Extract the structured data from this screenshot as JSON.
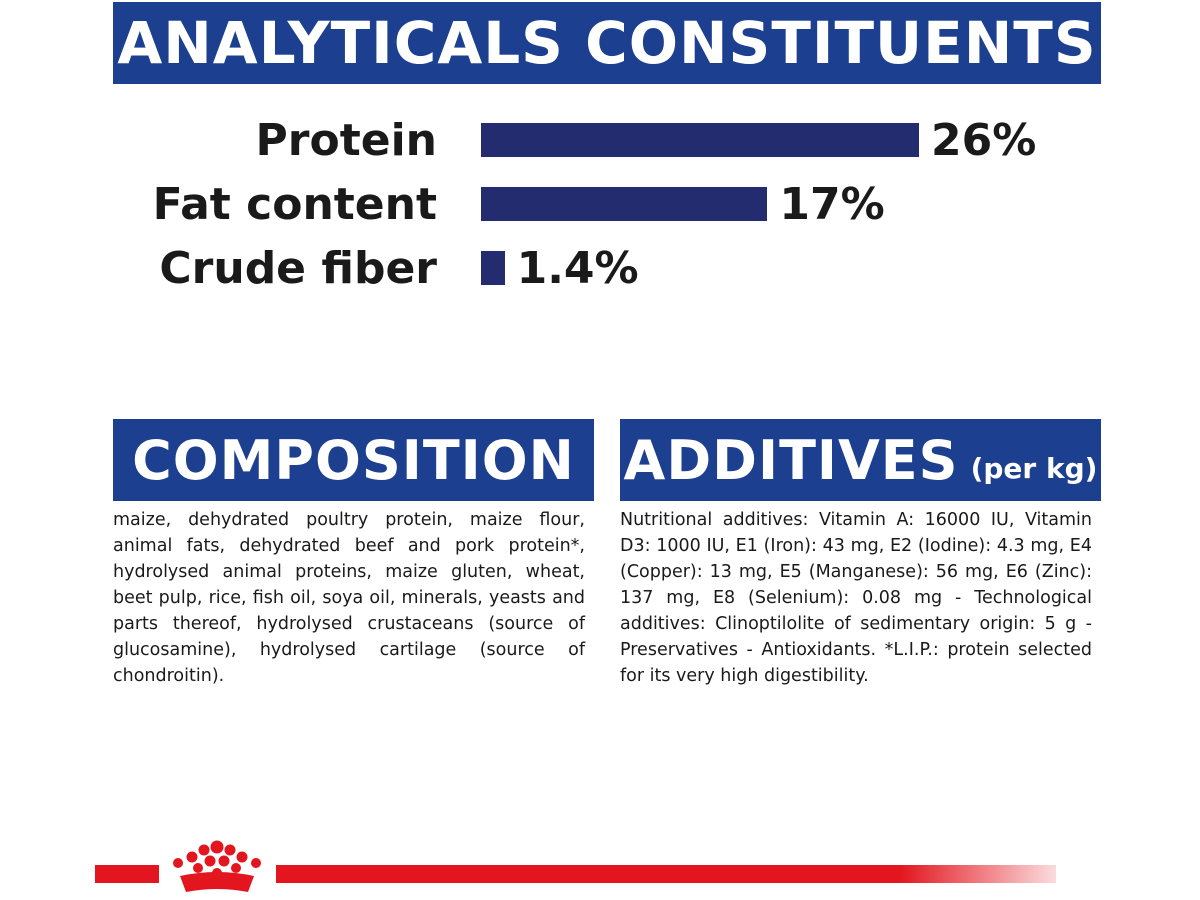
{
  "header": {
    "title": "ANALYTICALS CONSTITUENTS"
  },
  "constituents": [
    {
      "label": "Protein",
      "value": "26%",
      "percent": 26
    },
    {
      "label": "Fat content",
      "value": "17%",
      "percent": 17
    },
    {
      "label": "Crude fiber",
      "value": "1.4%",
      "percent": 1.4
    }
  ],
  "composition": {
    "title": "COMPOSITION",
    "text": "maize, dehydrated poultry protein, maize flour, animal fats, dehydrated beef and pork protein*, hydrolysed animal proteins, maize gluten, wheat, beet pulp, rice, fish oil, soya oil, minerals, yeasts and parts thereof, hydrolysed crustaceans (source of glucosamine), hydrolysed cartilage (source of chondroitin)."
  },
  "additives": {
    "title": "ADDITIVES",
    "subtitle": "(per kg)",
    "text": "Nutritional additives: Vitamin A: 16000 IU, Vitamin D3: 1000 IU, E1 (Iron): 43 mg, E2 (Iodine): 4.3 mg, E4 (Copper): 13 mg, E5 (Manganese): 56 mg, E6 (Zinc): 137 mg, E8 (Selenium): 0.08 mg - Technological additives: Clinoptilolite of sedimentary origin: 5 g - Preservatives - Antioxidants. *L.I.P.: protein selected for its very high digestibility."
  },
  "colors": {
    "banner": "#1d3f8f",
    "bar": "#222c6e",
    "brand_red": "#e3161f"
  },
  "logo": {
    "icon": "crown-icon"
  }
}
